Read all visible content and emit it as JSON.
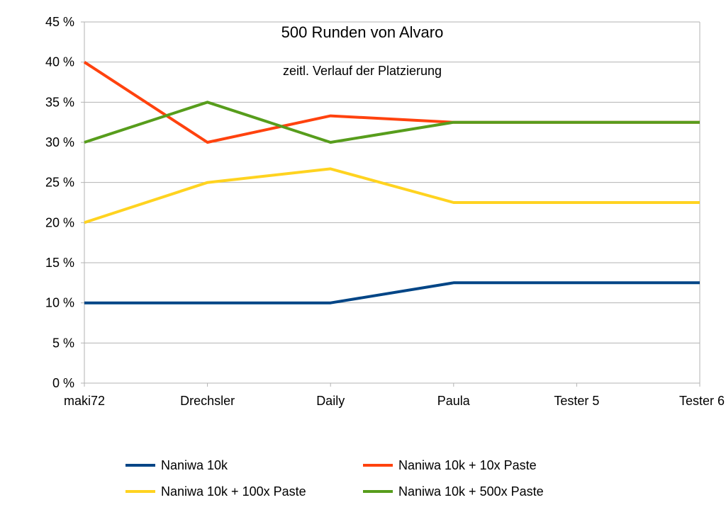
{
  "chart_data": {
    "type": "line",
    "title": "500 Runden von Alvaro",
    "subtitle": "zeitl. Verlauf der Platzierung",
    "xlabel": "",
    "ylabel": "",
    "categories": [
      "maki72",
      "Drechsler",
      "Daily",
      "Paula",
      "Tester 5",
      "Tester 6"
    ],
    "ylim": [
      0,
      45
    ],
    "y_ticks": [
      {
        "value": 0,
        "label": "0 %"
      },
      {
        "value": 5,
        "label": "5 %"
      },
      {
        "value": 10,
        "label": "10 %"
      },
      {
        "value": 15,
        "label": "15 %"
      },
      {
        "value": 20,
        "label": "20 %"
      },
      {
        "value": 25,
        "label": "25 %"
      },
      {
        "value": 30,
        "label": "30 %"
      },
      {
        "value": 35,
        "label": "35 %"
      },
      {
        "value": 40,
        "label": "40 %"
      },
      {
        "value": 45,
        "label": "45 %"
      }
    ],
    "grid": true,
    "legend_position": "bottom",
    "series": [
      {
        "name": "Naniwa 10k",
        "color": "#004586",
        "values": [
          10,
          10,
          10,
          12.5,
          12.5,
          12.5
        ]
      },
      {
        "name": "Naniwa 10k + 10x Paste",
        "color": "#ff420e",
        "values": [
          40,
          30,
          33.3,
          32.5,
          32.5,
          32.5
        ]
      },
      {
        "name": "Naniwa 10k + 100x Paste",
        "color": "#ffd320",
        "values": [
          20,
          25,
          26.7,
          22.5,
          22.5,
          22.5
        ]
      },
      {
        "name": "Naniwa 10k + 500x Paste",
        "color": "#579d1c",
        "values": [
          30,
          35,
          30,
          32.5,
          32.5,
          32.5
        ]
      }
    ]
  }
}
